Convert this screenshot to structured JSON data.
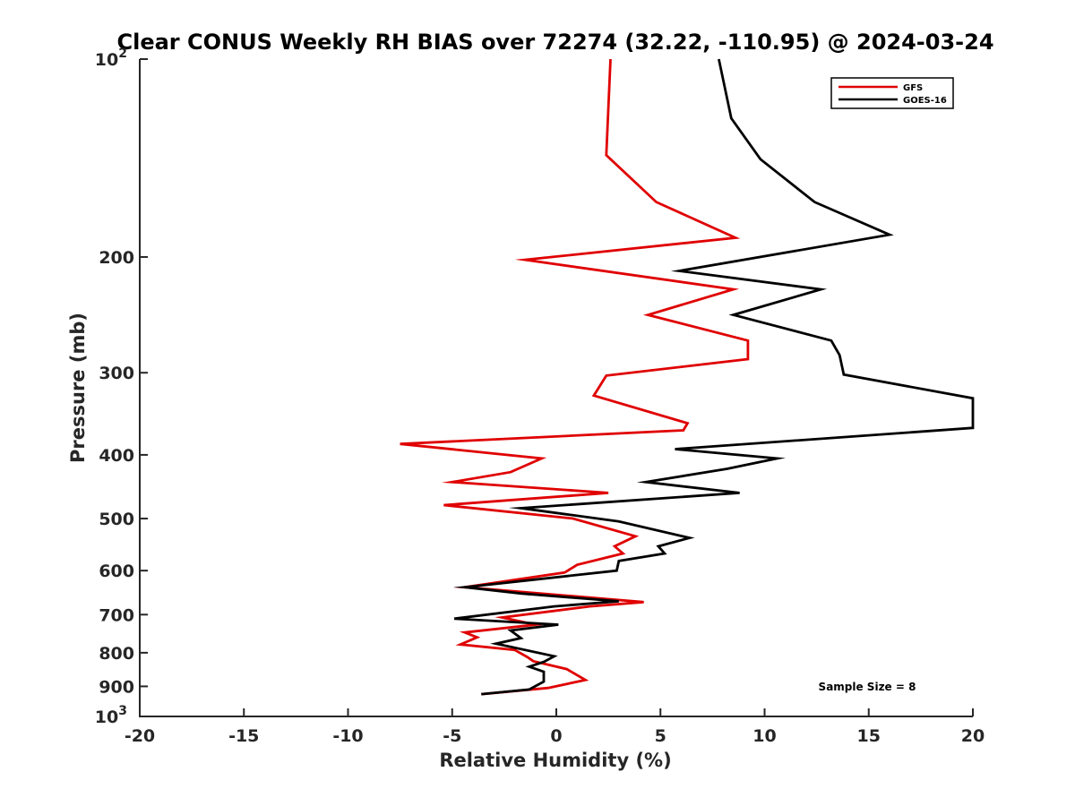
{
  "chart_data": {
    "type": "line",
    "title": "Clear CONUS Weekly RH BIAS over 72274 (32.22, -110.95) @ 2024-03-24",
    "xlabel": "Relative Humidity (%)",
    "ylabel": "Pressure (mb)",
    "xlim": [
      -20,
      20
    ],
    "ylim": [
      100,
      1000
    ],
    "y_scale": "log",
    "y_reversed": true,
    "grid": false,
    "legend_position": "top-right",
    "annotation": "Sample Size = 8",
    "x_ticks": [
      {
        "value": -20,
        "label": "-20"
      },
      {
        "value": -15,
        "label": "-15"
      },
      {
        "value": -10,
        "label": "-10"
      },
      {
        "value": -5,
        "label": "-5"
      },
      {
        "value": 0,
        "label": "0"
      },
      {
        "value": 5,
        "label": "5"
      },
      {
        "value": 10,
        "label": "10"
      },
      {
        "value": 15,
        "label": "15"
      },
      {
        "value": 20,
        "label": "20"
      }
    ],
    "y_ticks": [
      {
        "value": 100,
        "base": "10",
        "exp": "2"
      },
      {
        "value": 200,
        "base": "200",
        "exp": ""
      },
      {
        "value": 300,
        "base": "300",
        "exp": ""
      },
      {
        "value": 400,
        "base": "400",
        "exp": ""
      },
      {
        "value": 500,
        "base": "500",
        "exp": ""
      },
      {
        "value": 600,
        "base": "600",
        "exp": ""
      },
      {
        "value": 700,
        "base": "700",
        "exp": ""
      },
      {
        "value": 800,
        "base": "800",
        "exp": ""
      },
      {
        "value": 900,
        "base": "900",
        "exp": ""
      },
      {
        "value": 1000,
        "base": "10",
        "exp": "3"
      }
    ],
    "series": [
      {
        "name": "GFS",
        "color": "#e00000",
        "points": [
          [
            2.6,
            100
          ],
          [
            2.4,
            140
          ],
          [
            4.8,
            165
          ],
          [
            8.6,
            187
          ],
          [
            -1.5,
            202
          ],
          [
            8.5,
            224
          ],
          [
            4.4,
            245
          ],
          [
            9.2,
            268
          ],
          [
            9.2,
            286
          ],
          [
            2.4,
            303
          ],
          [
            1.8,
            325
          ],
          [
            6.3,
            358
          ],
          [
            6.1,
            367
          ],
          [
            -7.5,
            385
          ],
          [
            -0.7,
            405
          ],
          [
            -2.2,
            425
          ],
          [
            -5.0,
            440
          ],
          [
            2.5,
            457
          ],
          [
            -5.4,
            477
          ],
          [
            0.8,
            500
          ],
          [
            3.8,
            532
          ],
          [
            2.8,
            551
          ],
          [
            3.2,
            565
          ],
          [
            1.0,
            588
          ],
          [
            0.4,
            604
          ],
          [
            -4.4,
            636
          ],
          [
            0.5,
            655
          ],
          [
            4.2,
            670
          ],
          [
            1.6,
            680
          ],
          [
            -2.6,
            707
          ],
          [
            -1.0,
            725
          ],
          [
            -4.4,
            745
          ],
          [
            -3.8,
            758
          ],
          [
            -4.6,
            777
          ],
          [
            -2.0,
            792
          ],
          [
            -1.4,
            812
          ],
          [
            -1.1,
            824
          ],
          [
            0.5,
            847
          ],
          [
            1.4,
            880
          ],
          [
            -0.4,
            905
          ],
          [
            -3.6,
            925
          ]
        ]
      },
      {
        "name": "GOES-16",
        "color": "#000000",
        "points": [
          [
            7.8,
            100
          ],
          [
            8.4,
            123
          ],
          [
            9.8,
            142
          ],
          [
            12.4,
            165
          ],
          [
            16.0,
            185
          ],
          [
            5.9,
            210
          ],
          [
            12.7,
            224
          ],
          [
            8.5,
            245
          ],
          [
            13.2,
            268
          ],
          [
            13.6,
            282
          ],
          [
            13.8,
            302
          ],
          [
            20.0,
            328
          ],
          [
            20.0,
            364
          ],
          [
            5.7,
            392
          ],
          [
            10.6,
            405
          ],
          [
            8.2,
            420
          ],
          [
            4.3,
            440
          ],
          [
            8.8,
            457
          ],
          [
            -1.7,
            482
          ],
          [
            3.0,
            505
          ],
          [
            6.4,
            535
          ],
          [
            4.9,
            551
          ],
          [
            5.2,
            565
          ],
          [
            3.0,
            580
          ],
          [
            2.9,
            600
          ],
          [
            -4.4,
            636
          ],
          [
            -1.7,
            650
          ],
          [
            3.0,
            668
          ],
          [
            -0.1,
            680
          ],
          [
            -4.9,
            710
          ],
          [
            0.1,
            725
          ],
          [
            -2.2,
            740
          ],
          [
            -1.7,
            760
          ],
          [
            -2.9,
            775
          ],
          [
            -0.1,
            810
          ],
          [
            -0.6,
            826
          ],
          [
            -1.3,
            840
          ],
          [
            -0.6,
            855
          ],
          [
            -0.6,
            885
          ],
          [
            -1.3,
            910
          ],
          [
            -3.6,
            925
          ]
        ]
      }
    ]
  }
}
